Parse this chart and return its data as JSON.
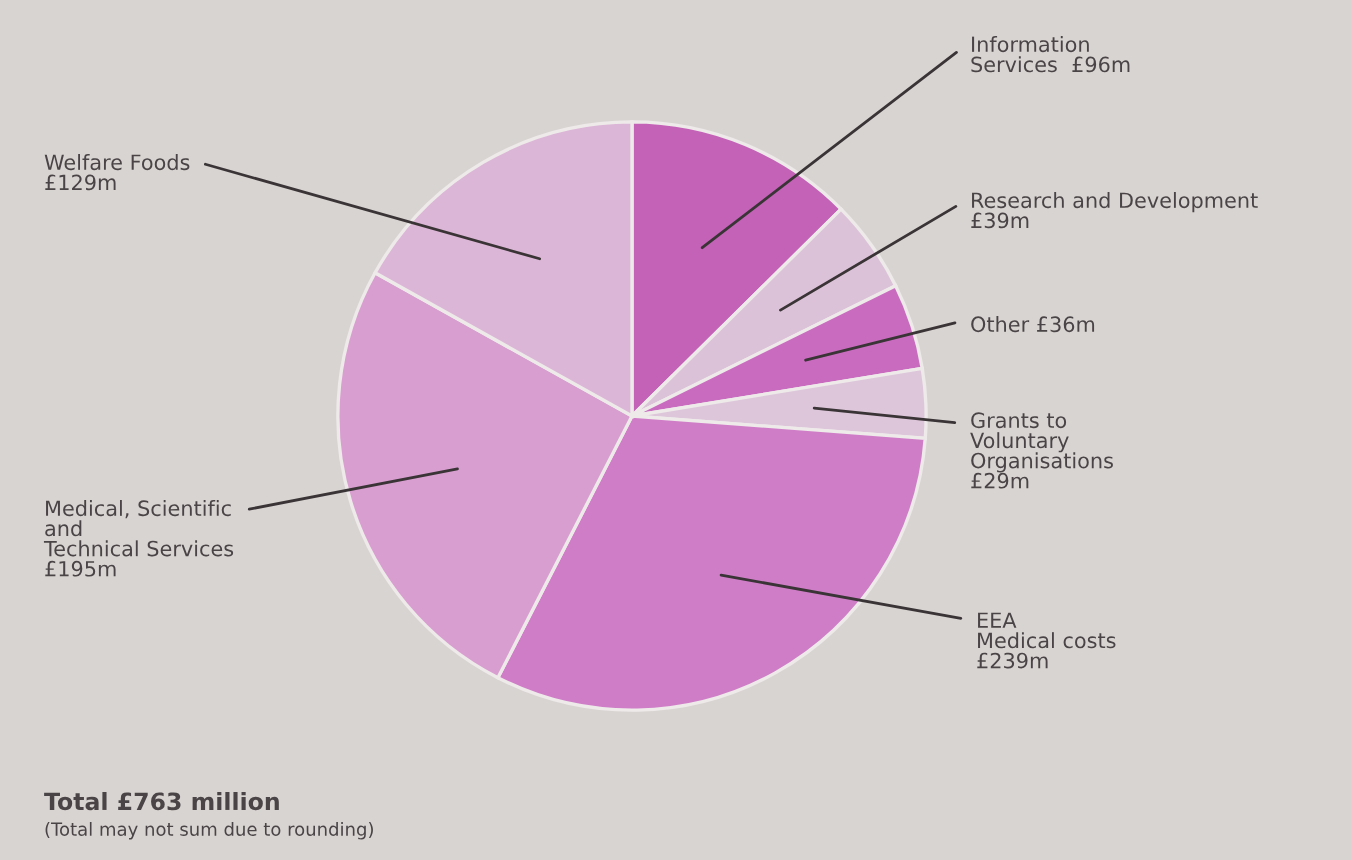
{
  "chart_data": {
    "type": "pie",
    "categories": [
      "Information Services",
      "Research and Development",
      "Other",
      "Grants to Voluntary Organisations",
      "EEA Medical costs",
      "Medical, Scientific and Technical Services",
      "Welfare Foods"
    ],
    "values": [
      96,
      39,
      36,
      29,
      239,
      195,
      129
    ],
    "value_labels": [
      "£96m",
      "£39m",
      "£36m",
      "£29m",
      "£239m",
      "£195m",
      "£129m"
    ],
    "colors": [
      "#c462b8",
      "#dcc2d8",
      "#c96cbf",
      "#ddc6da",
      "#cf7dc7",
      "#d89ed0",
      "#dcb6d6"
    ],
    "annotations": [
      "Total £763 million",
      "(Total may not sum due to rounding)"
    ]
  }
}
